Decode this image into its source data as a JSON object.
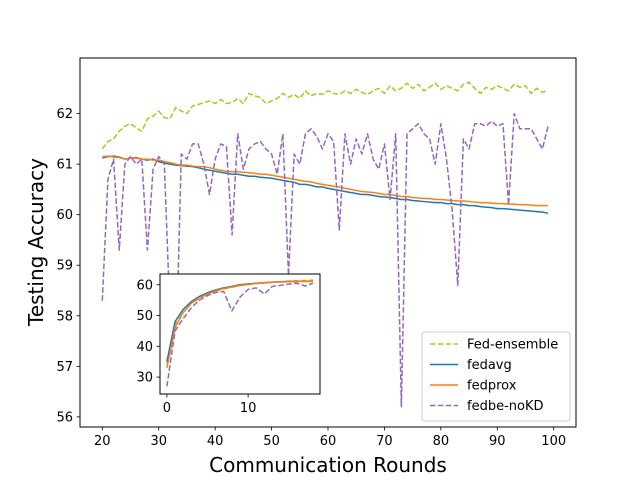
{
  "chart_data": {
    "type": "line",
    "title": "",
    "xlabel": "Communication Rounds",
    "ylabel": "Testing Accuracy",
    "xlim": [
      16.05,
      103.95
    ],
    "ylim": [
      55.8,
      63.1
    ],
    "xticks": [
      20,
      30,
      40,
      50,
      60,
      70,
      80,
      90,
      100
    ],
    "yticks": [
      56,
      57,
      58,
      59,
      60,
      61,
      62
    ],
    "grid": false,
    "legend_position": "lower-right",
    "x": [
      20,
      21,
      22,
      23,
      24,
      25,
      26,
      27,
      28,
      29,
      30,
      31,
      32,
      33,
      34,
      35,
      36,
      37,
      38,
      39,
      40,
      41,
      42,
      43,
      44,
      45,
      46,
      47,
      48,
      49,
      50,
      51,
      52,
      53,
      54,
      55,
      56,
      57,
      58,
      59,
      60,
      61,
      62,
      63,
      64,
      65,
      66,
      67,
      68,
      69,
      70,
      71,
      72,
      73,
      74,
      75,
      76,
      77,
      78,
      79,
      80,
      81,
      82,
      83,
      84,
      85,
      86,
      87,
      88,
      89,
      90,
      91,
      92,
      93,
      94,
      95,
      96,
      97,
      98,
      99
    ],
    "series": [
      {
        "name": "Fed-ensemble",
        "color": "#bcbd22",
        "dash": "dashed",
        "values": [
          61.3,
          61.45,
          61.5,
          61.65,
          61.75,
          61.8,
          61.72,
          61.65,
          61.9,
          61.95,
          62.05,
          61.92,
          61.9,
          62.12,
          62.05,
          62.0,
          62.15,
          62.18,
          62.22,
          62.25,
          62.2,
          62.28,
          62.2,
          62.22,
          62.3,
          62.2,
          62.4,
          62.35,
          62.32,
          62.2,
          62.25,
          62.3,
          62.4,
          62.32,
          62.38,
          62.3,
          62.45,
          62.35,
          62.4,
          62.38,
          62.45,
          62.4,
          62.38,
          62.45,
          62.4,
          62.48,
          62.42,
          62.38,
          62.45,
          62.5,
          62.4,
          62.55,
          62.45,
          62.5,
          62.6,
          62.5,
          62.58,
          62.45,
          62.52,
          62.6,
          62.48,
          62.55,
          62.5,
          62.45,
          62.58,
          62.62,
          62.5,
          62.4,
          62.52,
          62.48,
          62.55,
          62.5,
          62.45,
          62.58,
          62.52,
          62.55,
          62.4,
          62.5,
          62.42,
          62.46
        ]
      },
      {
        "name": "fedavg",
        "color": "#1f77b4",
        "dash": "solid",
        "values": [
          61.12,
          61.15,
          61.16,
          61.14,
          61.1,
          61.12,
          61.13,
          61.1,
          61.08,
          61.1,
          61.05,
          61.02,
          61.0,
          60.98,
          60.97,
          60.96,
          60.95,
          60.93,
          60.9,
          60.88,
          60.86,
          60.84,
          60.82,
          60.8,
          60.8,
          60.78,
          60.76,
          60.76,
          60.74,
          60.73,
          60.72,
          60.7,
          60.68,
          60.66,
          60.64,
          60.6,
          60.6,
          60.58,
          60.55,
          60.55,
          60.52,
          60.5,
          60.48,
          60.46,
          60.44,
          60.42,
          60.4,
          60.4,
          60.38,
          60.36,
          60.35,
          60.34,
          60.32,
          60.3,
          60.3,
          60.28,
          60.27,
          60.26,
          60.25,
          60.24,
          60.24,
          60.22,
          60.22,
          60.2,
          60.2,
          60.18,
          60.18,
          60.16,
          60.15,
          60.14,
          60.12,
          60.12,
          60.11,
          60.1,
          60.09,
          60.08,
          60.07,
          60.06,
          60.05,
          60.03
        ]
      },
      {
        "name": "fedprox",
        "color": "#ff7f0e",
        "dash": "solid",
        "values": [
          61.15,
          61.16,
          61.14,
          61.13,
          61.1,
          61.12,
          61.12,
          61.1,
          61.1,
          61.08,
          61.08,
          61.05,
          61.03,
          61.0,
          60.98,
          60.98,
          60.96,
          60.95,
          60.95,
          60.93,
          60.9,
          60.88,
          60.86,
          60.85,
          60.85,
          60.84,
          60.83,
          60.82,
          60.8,
          60.8,
          60.78,
          60.76,
          60.74,
          60.72,
          60.7,
          60.68,
          60.66,
          60.65,
          60.62,
          60.6,
          60.58,
          60.56,
          60.55,
          60.52,
          60.5,
          60.48,
          60.46,
          60.45,
          60.44,
          60.42,
          60.4,
          60.4,
          60.38,
          60.36,
          60.36,
          60.34,
          60.33,
          60.32,
          60.32,
          60.3,
          60.3,
          60.29,
          60.28,
          60.27,
          60.27,
          60.26,
          60.25,
          60.24,
          60.24,
          60.23,
          60.22,
          60.22,
          60.21,
          60.21,
          60.2,
          60.2,
          60.19,
          60.18,
          60.18,
          60.18
        ]
      },
      {
        "name": "fedbe-noKD",
        "color": "#9467bd",
        "dash": "dashed",
        "values": [
          58.3,
          60.7,
          61.1,
          59.3,
          61.0,
          61.15,
          61.0,
          61.1,
          59.3,
          60.9,
          61.15,
          61.0,
          58.0,
          56.9,
          61.2,
          61.1,
          61.4,
          61.4,
          61.0,
          60.4,
          61.1,
          61.4,
          61.35,
          59.6,
          61.6,
          60.9,
          61.3,
          61.4,
          61.45,
          61.3,
          61.2,
          60.8,
          61.6,
          58.8,
          61.2,
          61.0,
          61.6,
          61.7,
          61.55,
          61.3,
          61.6,
          61.45,
          59.7,
          61.6,
          61.0,
          61.5,
          61.2,
          61.6,
          61.1,
          60.9,
          61.4,
          60.3,
          61.6,
          56.2,
          61.6,
          61.7,
          61.8,
          61.6,
          61.5,
          61.0,
          61.8,
          61.1,
          60.1,
          58.6,
          61.5,
          61.3,
          61.8,
          61.8,
          61.75,
          61.85,
          61.75,
          61.8,
          60.2,
          62.0,
          61.7,
          61.7,
          61.7,
          61.5,
          61.3,
          61.75
        ]
      }
    ],
    "inset": {
      "xlim": [
        -0.85,
        18.85
      ],
      "ylim": [
        24.5,
        63.5
      ],
      "xticks": [
        0,
        10
      ],
      "yticks": [
        30,
        40,
        50,
        60
      ],
      "x": [
        0,
        1,
        2,
        3,
        4,
        5,
        6,
        7,
        8,
        9,
        10,
        11,
        12,
        13,
        14,
        15,
        16,
        17,
        18
      ],
      "series": [
        {
          "name": "Fed-ensemble",
          "color": "#bcbd22",
          "dash": "dashed",
          "values": [
            34,
            47,
            51,
            54,
            55.5,
            57,
            58,
            58.6,
            59.2,
            59.7,
            60.1,
            60.4,
            60.6,
            60.8,
            61,
            61.2,
            61.3,
            61.4,
            61.5
          ]
        },
        {
          "name": "fedavg",
          "color": "#1f77b4",
          "dash": "solid",
          "values": [
            35,
            48,
            52,
            54.5,
            56.2,
            57.4,
            58.3,
            59,
            59.5,
            60,
            60.3,
            60.5,
            60.7,
            60.85,
            61,
            61.05,
            61.1,
            61.12,
            61.15
          ]
        },
        {
          "name": "fedprox",
          "color": "#ff7f0e",
          "dash": "solid",
          "values": [
            33,
            46,
            51,
            54,
            55.8,
            57,
            58,
            58.8,
            59.3,
            59.8,
            60.1,
            60.4,
            60.6,
            60.8,
            60.9,
            61,
            61.05,
            61.1,
            61.12
          ]
        },
        {
          "name": "fedbe-noKD",
          "color": "#9467bd",
          "dash": "dashed",
          "values": [
            27,
            45,
            49,
            52.5,
            55,
            56.5,
            57.5,
            57.8,
            51.5,
            56,
            58.5,
            59,
            57,
            59.5,
            59.8,
            60.2,
            60.5,
            59.6,
            60.5
          ]
        }
      ]
    }
  }
}
